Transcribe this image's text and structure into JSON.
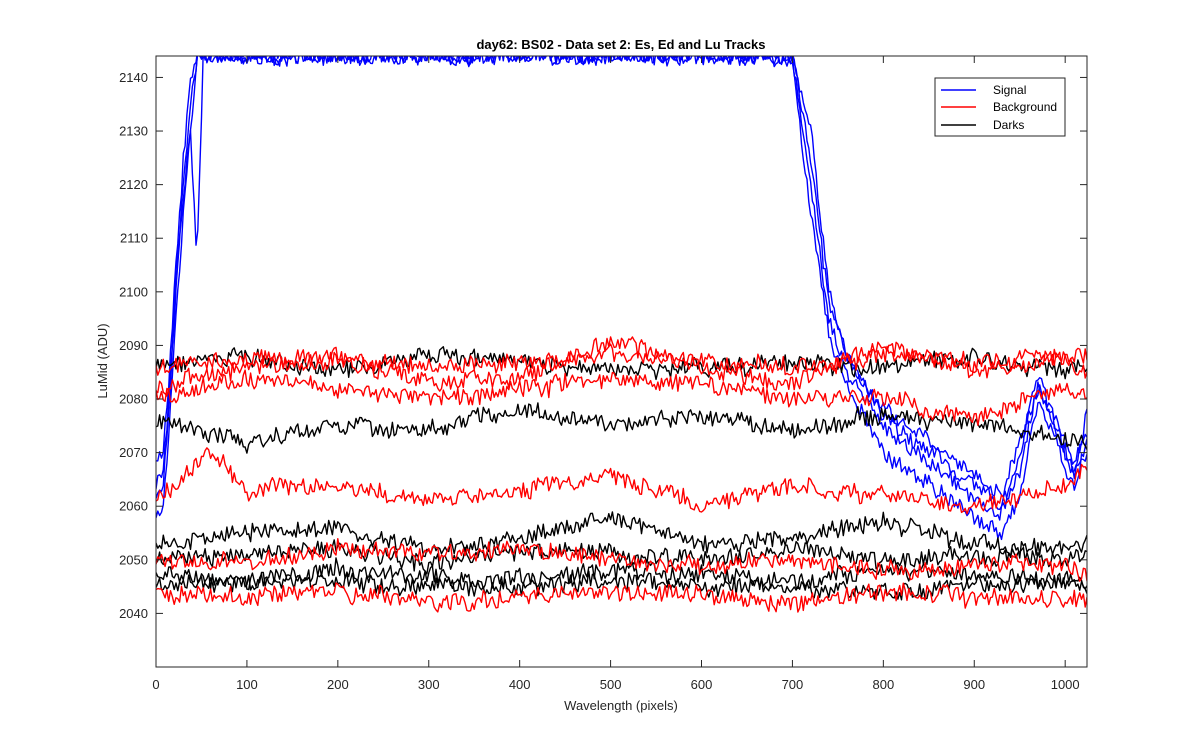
{
  "chart_data": {
    "type": "line",
    "title": "day62: BS02 - Data set 2: Es, Ed and Lu Tracks",
    "xlabel": "Wavelength (pixels)",
    "ylabel": "LuMid (ADU)",
    "xlim": [
      0,
      1024
    ],
    "ylim": [
      2030,
      2144
    ],
    "xticks": [
      0,
      100,
      200,
      300,
      400,
      500,
      600,
      700,
      800,
      900,
      1000
    ],
    "yticks": [
      2040,
      2050,
      2060,
      2070,
      2080,
      2090,
      2100,
      2110,
      2120,
      2130,
      2140
    ],
    "grid": false,
    "legend_position": "top-right",
    "legend": [
      {
        "name": "Signal",
        "color": "#0000ff"
      },
      {
        "name": "Background",
        "color": "#ff0000"
      },
      {
        "name": "Darks",
        "color": "#000000"
      }
    ],
    "series": [
      {
        "group": "Signal",
        "color": "#0000ff",
        "x": [
          0,
          8,
          15,
          22,
          30,
          38,
          45,
          52,
          60,
          700,
          720,
          740,
          760,
          780,
          800,
          850,
          900,
          930,
          950,
          970,
          990,
          1010,
          1024
        ],
        "y": [
          2062,
          2064,
          2080,
          2100,
          2120,
          2135,
          2144,
          2144,
          2144,
          2144,
          2120,
          2095,
          2085,
          2080,
          2075,
          2068,
          2062,
          2058,
          2070,
          2085,
          2075,
          2066,
          2070
        ]
      },
      {
        "group": "Signal",
        "color": "#0000ff",
        "x": [
          0,
          8,
          15,
          22,
          30,
          38,
          45,
          52,
          60,
          700,
          720,
          740,
          760,
          780,
          800,
          850,
          900,
          930,
          950,
          970,
          990,
          1010,
          1024
        ],
        "y": [
          2068,
          2070,
          2085,
          2105,
          2125,
          2140,
          2144,
          2144,
          2144,
          2144,
          2125,
          2098,
          2088,
          2083,
          2078,
          2072,
          2066,
          2062,
          2072,
          2082,
          2076,
          2068,
          2074
        ]
      },
      {
        "group": "Signal",
        "color": "#0000ff",
        "x": [
          0,
          8,
          15,
          22,
          30,
          38,
          45,
          52,
          60,
          700,
          720,
          740,
          760,
          780,
          800,
          850,
          900,
          930,
          950,
          970,
          990,
          1010,
          1024
        ],
        "y": [
          2058,
          2060,
          2075,
          2095,
          2115,
          2130,
          2144,
          2144,
          2144,
          2144,
          2115,
          2092,
          2082,
          2076,
          2070,
          2064,
          2058,
          2055,
          2062,
          2080,
          2072,
          2063,
          2072
        ]
      },
      {
        "group": "Signal",
        "color": "#0000ff",
        "x": [
          0,
          8,
          15,
          22,
          30,
          38,
          45,
          52,
          60,
          700,
          720,
          740,
          760,
          780,
          800,
          850,
          900,
          930,
          950,
          970,
          990,
          1010,
          1024
        ],
        "y": [
          2064,
          2066,
          2082,
          2102,
          2118,
          2130,
          2106,
          2144,
          2144,
          2144,
          2130,
          2100,
          2088,
          2082,
          2077,
          2070,
          2064,
          2060,
          2066,
          2083,
          2074,
          2065,
          2078
        ]
      },
      {
        "group": "Background",
        "color": "#ff0000",
        "x": [
          0,
          100,
          200,
          300,
          400,
          500,
          600,
          700,
          800,
          900,
          1000,
          1024
        ],
        "y": [
          2086,
          2087,
          2088,
          2086,
          2087,
          2088,
          2087,
          2086,
          2088,
          2087,
          2088,
          2088
        ]
      },
      {
        "group": "Background",
        "color": "#ff0000",
        "x": [
          0,
          100,
          200,
          300,
          400,
          500,
          600,
          700,
          800,
          900,
          1000,
          1024
        ],
        "y": [
          2082,
          2086,
          2087,
          2083,
          2084,
          2091,
          2086,
          2083,
          2090,
          2085,
          2088,
          2084
        ]
      },
      {
        "group": "Background",
        "color": "#ff0000",
        "x": [
          0,
          100,
          200,
          300,
          400,
          500,
          600,
          700,
          800,
          900,
          1000,
          1024
        ],
        "y": [
          2080,
          2084,
          2082,
          2080,
          2082,
          2084,
          2083,
          2080,
          2080,
          2076,
          2082,
          2080
        ]
      },
      {
        "group": "Background",
        "color": "#ff0000",
        "x": [
          0,
          60,
          100,
          200,
          300,
          400,
          500,
          600,
          700,
          800,
          900,
          1000,
          1024
        ],
        "y": [
          2061,
          2070,
          2063,
          2064,
          2061,
          2063,
          2066,
          2060,
          2064,
          2062,
          2060,
          2064,
          2067
        ]
      },
      {
        "group": "Background",
        "color": "#ff0000",
        "x": [
          0,
          100,
          200,
          300,
          400,
          500,
          600,
          700,
          800,
          900,
          1000,
          1024
        ],
        "y": [
          2050,
          2049,
          2052,
          2051,
          2052,
          2050,
          2049,
          2050,
          2048,
          2049,
          2049,
          2047
        ]
      },
      {
        "group": "Background",
        "color": "#ff0000",
        "x": [
          0,
          100,
          200,
          300,
          400,
          500,
          600,
          700,
          800,
          900,
          1000,
          1024
        ],
        "y": [
          2044,
          2043,
          2044,
          2042,
          2043,
          2044,
          2043,
          2042,
          2044,
          2043,
          2043,
          2043
        ]
      },
      {
        "group": "Darks",
        "color": "#000000",
        "x": [
          0,
          100,
          200,
          300,
          400,
          500,
          600,
          700,
          800,
          900,
          1000,
          1024
        ],
        "y": [
          2086,
          2088,
          2085,
          2088,
          2087,
          2085,
          2086,
          2087,
          2086,
          2088,
          2085,
          2086
        ]
      },
      {
        "group": "Darks",
        "color": "#000000",
        "x": [
          0,
          100,
          200,
          300,
          400,
          500,
          600,
          700,
          800,
          900,
          1000,
          1024
        ],
        "y": [
          2076,
          2072,
          2075,
          2074,
          2078,
          2075,
          2077,
          2074,
          2077,
          2075,
          2073,
          2072
        ]
      },
      {
        "group": "Darks",
        "color": "#000000",
        "x": [
          0,
          100,
          200,
          300,
          400,
          500,
          600,
          700,
          800,
          900,
          1000,
          1024
        ],
        "y": [
          2053,
          2055,
          2056,
          2052,
          2054,
          2058,
          2053,
          2054,
          2057,
          2053,
          2052,
          2053
        ]
      },
      {
        "group": "Darks",
        "color": "#000000",
        "x": [
          0,
          100,
          200,
          300,
          400,
          500,
          600,
          700,
          800,
          900,
          1000,
          1024
        ],
        "y": [
          2050,
          2051,
          2052,
          2049,
          2052,
          2051,
          2050,
          2052,
          2050,
          2051,
          2050,
          2051
        ]
      },
      {
        "group": "Darks",
        "color": "#000000",
        "x": [
          0,
          100,
          200,
          300,
          400,
          500,
          600,
          700,
          800,
          900,
          1000,
          1024
        ],
        "y": [
          2047,
          2046,
          2048,
          2047,
          2046,
          2048,
          2047,
          2046,
          2048,
          2047,
          2046,
          2046
        ]
      },
      {
        "group": "Darks",
        "color": "#000000",
        "x": [
          0,
          100,
          200,
          300,
          400,
          500,
          600,
          700,
          800,
          900,
          1000,
          1024
        ],
        "y": [
          2045,
          2046,
          2046,
          2045,
          2045,
          2046,
          2045,
          2045,
          2044,
          2045,
          2046,
          2045
        ]
      }
    ]
  }
}
